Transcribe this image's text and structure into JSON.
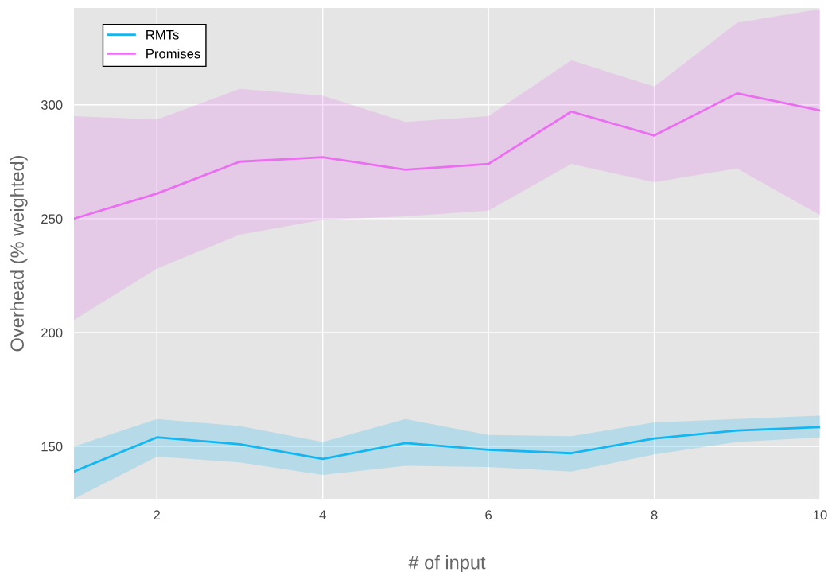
{
  "chart_data": {
    "type": "line",
    "xlabel": "# of input",
    "ylabel": "Overhead (% weighted)",
    "x": [
      1,
      2,
      3,
      4,
      5,
      6,
      7,
      8,
      9,
      10
    ],
    "series": [
      {
        "name": "RMTs",
        "color": "#13b6f0",
        "values": [
          139,
          154,
          151,
          144.5,
          151.5,
          148.5,
          147,
          153.5,
          157,
          158.5
        ],
        "lower": [
          127,
          145.5,
          143,
          137.5,
          141.5,
          141,
          139,
          146.5,
          152,
          154
        ],
        "upper": [
          150,
          162,
          159,
          152,
          162,
          155,
          154.5,
          160.5,
          162,
          163.5
        ]
      },
      {
        "name": "Promises",
        "color": "#ea6ef0",
        "values": [
          250,
          261,
          275,
          277,
          271.5,
          274,
          297,
          286.5,
          305,
          297.5
        ],
        "lower": [
          205.5,
          228,
          243,
          249.5,
          251,
          253.5,
          274,
          266,
          272,
          251.5
        ],
        "upper": [
          295,
          293.5,
          307,
          304,
          292.5,
          295,
          319.5,
          308,
          336,
          342
        ]
      }
    ],
    "xlim": [
      1,
      10
    ],
    "ylim": [
      127,
      342.5
    ],
    "xticks": [
      2,
      4,
      6,
      8,
      10
    ],
    "yticks": [
      150,
      200,
      250,
      300
    ],
    "grid": true,
    "legend": "top left",
    "marker": "none",
    "line_style": "solid"
  }
}
